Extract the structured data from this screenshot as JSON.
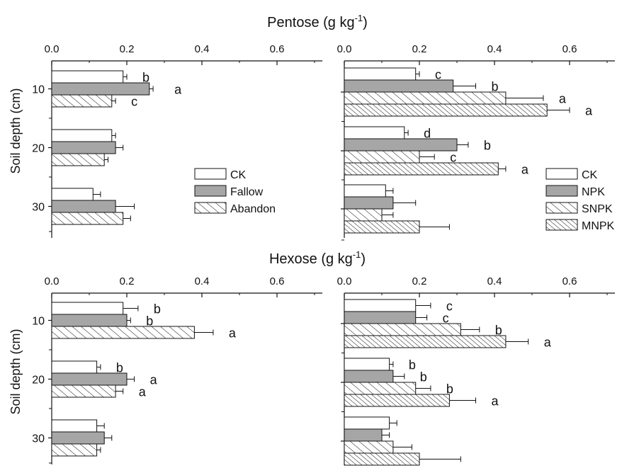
{
  "section_titles": [
    {
      "base": "Pentose (g kg",
      "sup": "-1",
      "close": ")"
    },
    {
      "base": "Hexose (g kg",
      "sup": "-1",
      "close": ")"
    }
  ],
  "ylabel": "Soil depth (cm)",
  "depths": [
    "10",
    "20",
    "30"
  ],
  "xticks": [
    "0.0",
    "0.2",
    "0.4",
    "0.6"
  ],
  "colors": {
    "ck": "#ffffff",
    "filled": "#a6a6a6",
    "stroke": "#111111"
  },
  "chart_data": [
    {
      "type": "bar",
      "orientation": "horizontal",
      "title": "Pentose (g kg-1)",
      "ylabel": "Soil depth (cm)",
      "xlim": [
        0,
        0.72
      ],
      "categories": [
        "10",
        "20",
        "30"
      ],
      "legend": "center-right",
      "series": [
        {
          "name": "CK",
          "fill": "white",
          "values": [
            0.19,
            0.16,
            0.11
          ],
          "errors": [
            0.01,
            0.01,
            0.02
          ],
          "letters": [
            "b",
            "",
            ""
          ]
        },
        {
          "name": "Fallow",
          "fill": "gray",
          "values": [
            0.26,
            0.17,
            0.17
          ],
          "errors": [
            0.01,
            0.02,
            0.05
          ],
          "letters": [
            "a",
            "",
            ""
          ]
        },
        {
          "name": "Abandon",
          "fill": "hatch",
          "values": [
            0.16,
            0.14,
            0.19
          ],
          "errors": [
            0.01,
            0.01,
            0.02
          ],
          "letters": [
            "c",
            "",
            ""
          ]
        }
      ]
    },
    {
      "type": "bar",
      "orientation": "horizontal",
      "title": "Pentose (g kg-1)",
      "ylabel": "",
      "xlim": [
        0,
        0.72
      ],
      "categories": [
        "10",
        "20",
        "30"
      ],
      "legend": "bottom-right",
      "series": [
        {
          "name": "CK",
          "fill": "white",
          "values": [
            0.19,
            0.16,
            0.11
          ],
          "errors": [
            0.01,
            0.01,
            0.02
          ],
          "letters": [
            "c",
            "d",
            ""
          ]
        },
        {
          "name": "NPK",
          "fill": "gray",
          "values": [
            0.29,
            0.3,
            0.13
          ],
          "errors": [
            0.06,
            0.03,
            0.06
          ],
          "letters": [
            "b",
            "b",
            ""
          ]
        },
        {
          "name": "SNPK",
          "fill": "hatch",
          "values": [
            0.43,
            0.2,
            0.1
          ],
          "errors": [
            0.1,
            0.04,
            0.03
          ],
          "letters": [
            "a",
            "c",
            ""
          ]
        },
        {
          "name": "MNPK",
          "fill": "hatch-dense",
          "values": [
            0.54,
            0.41,
            0.2
          ],
          "errors": [
            0.06,
            0.02,
            0.08
          ],
          "letters": [
            "a",
            "a",
            ""
          ]
        }
      ]
    },
    {
      "type": "bar",
      "orientation": "horizontal",
      "title": "Hexose (g kg-1)",
      "ylabel": "Soil depth (cm)",
      "xlim": [
        0,
        0.72
      ],
      "categories": [
        "10",
        "20",
        "30"
      ],
      "legend": "none",
      "series": [
        {
          "name": "CK",
          "fill": "white",
          "values": [
            0.19,
            0.12,
            0.12
          ],
          "errors": [
            0.04,
            0.01,
            0.02
          ],
          "letters": [
            "b",
            "b",
            ""
          ]
        },
        {
          "name": "Fallow",
          "fill": "gray",
          "values": [
            0.2,
            0.2,
            0.14
          ],
          "errors": [
            0.01,
            0.02,
            0.02
          ],
          "letters": [
            "b",
            "a",
            ""
          ]
        },
        {
          "name": "Abandon",
          "fill": "hatch",
          "values": [
            0.38,
            0.17,
            0.12
          ],
          "errors": [
            0.05,
            0.02,
            0.01
          ],
          "letters": [
            "a",
            "a",
            ""
          ]
        }
      ]
    },
    {
      "type": "bar",
      "orientation": "horizontal",
      "title": "Hexose (g kg-1)",
      "ylabel": "",
      "xlim": [
        0,
        0.72
      ],
      "categories": [
        "10",
        "20",
        "30"
      ],
      "legend": "none",
      "series": [
        {
          "name": "CK",
          "fill": "white",
          "values": [
            0.19,
            0.12,
            0.12
          ],
          "errors": [
            0.04,
            0.01,
            0.02
          ],
          "letters": [
            "c",
            "b",
            ""
          ]
        },
        {
          "name": "NPK",
          "fill": "gray",
          "values": [
            0.19,
            0.13,
            0.1
          ],
          "errors": [
            0.03,
            0.03,
            0.02
          ],
          "letters": [
            "c",
            "b",
            ""
          ]
        },
        {
          "name": "SNPK",
          "fill": "hatch",
          "values": [
            0.31,
            0.19,
            0.13
          ],
          "errors": [
            0.05,
            0.04,
            0.05
          ],
          "letters": [
            "b",
            "b",
            ""
          ]
        },
        {
          "name": "MNPK",
          "fill": "hatch-dense",
          "values": [
            0.43,
            0.28,
            0.2
          ],
          "errors": [
            0.06,
            0.07,
            0.11
          ],
          "letters": [
            "a",
            "a",
            ""
          ]
        }
      ]
    }
  ]
}
